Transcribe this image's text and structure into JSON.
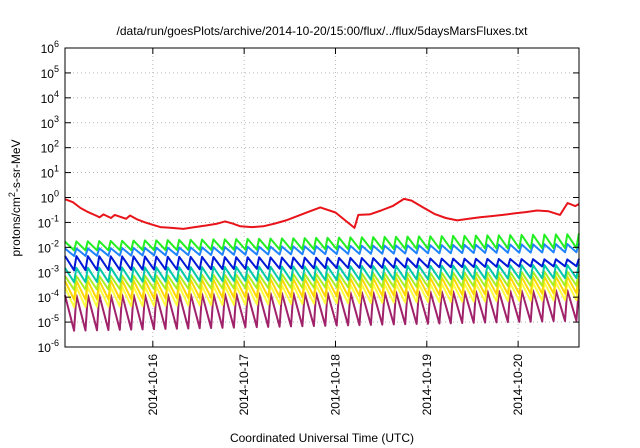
{
  "chart_data": {
    "type": "line",
    "title": "/data/run/goesPlots/archive/2014-10-20/15:00/flux/../flux/5daysMarsFluxes.txt",
    "xlabel": "Coordinated Universal Time (UTC)",
    "ylabel": "protons/cm2-s-sr-MeV",
    "ylabel_base": "protons/cm",
    "ylabel_sup": "2",
    "ylabel_rest": "-s-sr-MeV",
    "yscale": "log",
    "ylim": [
      1e-06,
      1000000.0
    ],
    "yticks": [
      {
        "base": "10",
        "exp": "-6",
        "value": -6
      },
      {
        "base": "10",
        "exp": "-5",
        "value": -5
      },
      {
        "base": "10",
        "exp": "-4",
        "value": -4
      },
      {
        "base": "10",
        "exp": "-3",
        "value": -3
      },
      {
        "base": "10",
        "exp": "-2",
        "value": -2
      },
      {
        "base": "10",
        "exp": "-1",
        "value": -1
      },
      {
        "base": "10",
        "exp": "0",
        "value": 0
      },
      {
        "base": "10",
        "exp": "1",
        "value": 1
      },
      {
        "base": "10",
        "exp": "2",
        "value": 2
      },
      {
        "base": "10",
        "exp": "3",
        "value": 3
      },
      {
        "base": "10",
        "exp": "4",
        "value": 4
      },
      {
        "base": "10",
        "exp": "5",
        "value": 5
      },
      {
        "base": "10",
        "exp": "6",
        "value": 6
      }
    ],
    "xlim": [
      "2014-10-15T00:55",
      "2014-10-20T16:00"
    ],
    "xticks": [
      "2014-10-16",
      "2014-10-17",
      "2014-10-18",
      "2014-10-19",
      "2014-10-20"
    ],
    "grid": true,
    "sawtooth_period_hours": 3,
    "series": [
      {
        "color": "#e8141a",
        "points": [
          [
            "2014-10-15T01:00",
            0.85
          ],
          [
            "2014-10-15T03:00",
            0.65
          ],
          [
            "2014-10-15T05:00",
            0.38
          ],
          [
            "2014-10-15T07:00",
            0.26
          ],
          [
            "2014-10-15T09:00",
            0.19
          ],
          [
            "2014-10-15T10:00",
            0.16
          ],
          [
            "2014-10-15T11:00",
            0.21
          ],
          [
            "2014-10-15T13:00",
            0.15
          ],
          [
            "2014-10-15T14:00",
            0.2
          ],
          [
            "2014-10-15T17:00",
            0.14
          ],
          [
            "2014-10-15T18:00",
            0.19
          ],
          [
            "2014-10-15T20:00",
            0.13
          ],
          [
            "2014-10-15T22:00",
            0.1
          ],
          [
            "2014-10-16T00:00",
            0.08
          ],
          [
            "2014-10-16T02:00",
            0.065
          ],
          [
            "2014-10-16T05:00",
            0.06
          ],
          [
            "2014-10-16T08:00",
            0.055
          ],
          [
            "2014-10-16T11:00",
            0.065
          ],
          [
            "2014-10-16T14:00",
            0.075
          ],
          [
            "2014-10-16T17:00",
            0.09
          ],
          [
            "2014-10-16T19:00",
            0.11
          ],
          [
            "2014-10-16T21:00",
            0.09
          ],
          [
            "2014-10-16T23:00",
            0.07
          ],
          [
            "2014-10-17T02:00",
            0.065
          ],
          [
            "2014-10-17T05:00",
            0.07
          ],
          [
            "2014-10-17T08:00",
            0.09
          ],
          [
            "2014-10-17T11:00",
            0.12
          ],
          [
            "2014-10-17T14:00",
            0.18
          ],
          [
            "2014-10-17T17:00",
            0.27
          ],
          [
            "2014-10-17T20:00",
            0.4
          ],
          [
            "2014-10-18T00:00",
            0.25
          ],
          [
            "2014-10-18T05:00",
            0.06
          ],
          [
            "2014-10-18T06:00",
            0.2
          ],
          [
            "2014-10-18T09:00",
            0.21
          ],
          [
            "2014-10-18T12:00",
            0.3
          ],
          [
            "2014-10-18T15:00",
            0.45
          ],
          [
            "2014-10-18T18:00",
            0.88
          ],
          [
            "2014-10-18T20:00",
            0.75
          ],
          [
            "2014-10-18T23:00",
            0.4
          ],
          [
            "2014-10-19T02:00",
            0.22
          ],
          [
            "2014-10-19T05:00",
            0.15
          ],
          [
            "2014-10-19T08:00",
            0.12
          ],
          [
            "2014-10-19T11:00",
            0.14
          ],
          [
            "2014-10-19T14:00",
            0.16
          ],
          [
            "2014-10-19T17:00",
            0.18
          ],
          [
            "2014-10-19T20:00",
            0.2
          ],
          [
            "2014-10-19T23:00",
            0.23
          ],
          [
            "2014-10-20T02:00",
            0.26
          ],
          [
            "2014-10-20T05:00",
            0.3
          ],
          [
            "2014-10-20T08:00",
            0.28
          ],
          [
            "2014-10-20T11:00",
            0.2
          ],
          [
            "2014-10-20T13:00",
            0.6
          ],
          [
            "2014-10-20T15:00",
            0.45
          ],
          [
            "2014-10-20T16:00",
            0.55
          ]
        ]
      },
      {
        "color": "#22ee22",
        "high": [
          0.017,
          0.035
        ],
        "low": [
          0.0075,
          0.0095
        ]
      },
      {
        "color": "#1f83ff",
        "high": [
          0.009,
          0.014
        ],
        "low": [
          0.0045,
          0.0065
        ]
      },
      {
        "color": "#0018d8",
        "high": [
          0.0045,
          0.0032
        ],
        "low": [
          0.0012,
          0.0018
        ]
      },
      {
        "color": "#00c8a8",
        "high": [
          0.0015,
          0.002
        ],
        "low": [
          0.0004,
          0.0006
        ]
      },
      {
        "color": "#aaee22",
        "high": [
          0.0007,
          0.0011
        ],
        "low": [
          0.0002,
          0.0003
        ]
      },
      {
        "color": "#ffd700",
        "high": [
          0.00045,
          0.0007
        ],
        "low": [
          8e-05,
          0.00015
        ]
      },
      {
        "color": "#ffff40",
        "high": [
          0.00025,
          0.0004
        ],
        "low": [
          4e-05,
          8e-05
        ]
      },
      {
        "color": "#a0226a",
        "high": [
          0.00012,
          0.0002
        ],
        "low": [
          4.5e-06,
          1.2e-05
        ]
      }
    ]
  }
}
